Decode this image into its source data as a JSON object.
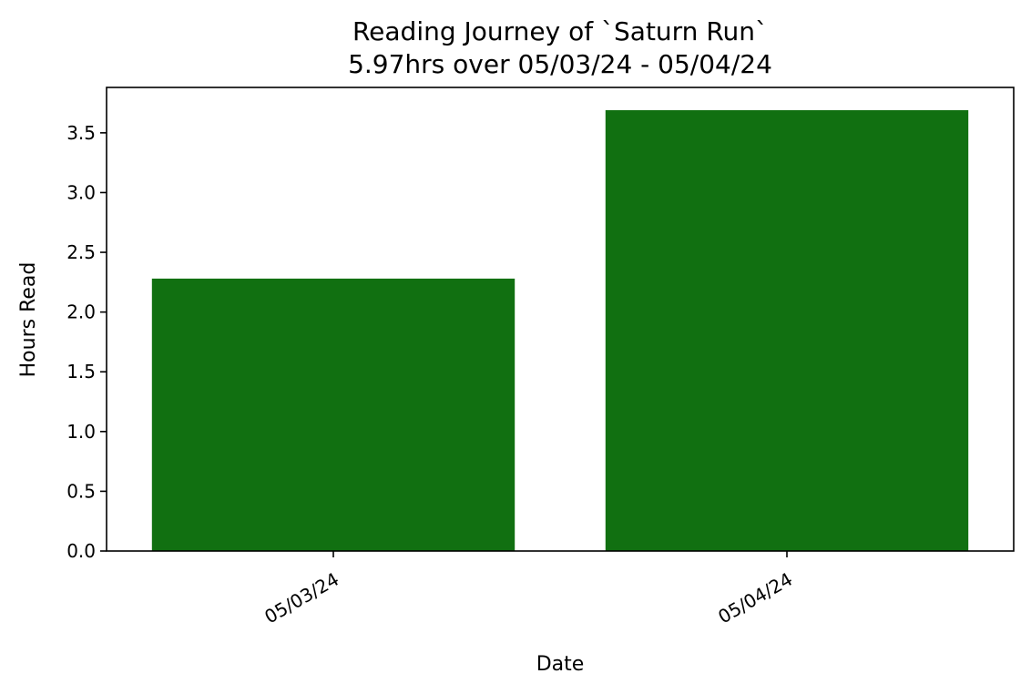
{
  "chart_data": {
    "type": "bar",
    "title": "Reading Journey of `Saturn Run`",
    "subtitle": "5.97hrs over 05/03/24 - 05/04/24",
    "xlabel": "Date",
    "ylabel": "Hours Read",
    "categories": [
      "05/03/24",
      "05/04/24"
    ],
    "values": [
      2.28,
      3.69
    ],
    "ylim": [
      0,
      3.88
    ],
    "yticks": [
      "0.0",
      "0.5",
      "1.0",
      "1.5",
      "2.0",
      "2.5",
      "3.0",
      "3.5"
    ],
    "bar_color": "#117011",
    "grid": false,
    "legend": "none"
  }
}
